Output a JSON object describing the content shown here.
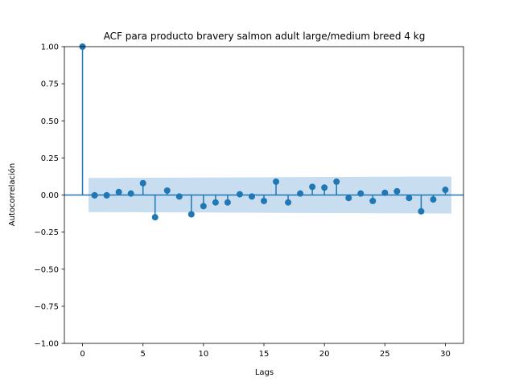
{
  "chart_data": {
    "type": "scatter",
    "title": "ACF para producto bravery salmon adult large/medium breed 4 kg",
    "xlabel": "Lags",
    "ylabel": "Autocorrelación",
    "xlim": [
      -1.5,
      31.5
    ],
    "ylim": [
      -1.0,
      1.0
    ],
    "xticks": [
      0,
      5,
      10,
      15,
      20,
      25,
      30
    ],
    "xtick_labels": [
      "0",
      "5",
      "10",
      "15",
      "20",
      "25",
      "30"
    ],
    "yticks": [
      1.0,
      0.75,
      0.5,
      0.25,
      0.0,
      -0.25,
      -0.5,
      -0.75,
      -1.0
    ],
    "ytick_labels": [
      "1.00",
      "0.75",
      "0.50",
      "0.25",
      "0.00",
      "−0.25",
      "−0.50",
      "−0.75",
      "−1.00"
    ],
    "grid": false,
    "lags": [
      0,
      1,
      2,
      3,
      4,
      5,
      6,
      7,
      8,
      9,
      10,
      11,
      12,
      13,
      14,
      15,
      16,
      17,
      18,
      19,
      20,
      21,
      22,
      23,
      24,
      25,
      26,
      27,
      28,
      29,
      30
    ],
    "acf": [
      1.0,
      -0.002,
      -0.002,
      0.02,
      0.01,
      0.08,
      -0.15,
      0.03,
      -0.01,
      -0.13,
      -0.075,
      -0.05,
      -0.05,
      0.005,
      -0.01,
      -0.04,
      0.09,
      -0.05,
      0.01,
      0.055,
      0.05,
      0.09,
      -0.02,
      0.01,
      -0.04,
      0.015,
      0.025,
      -0.02,
      -0.11,
      -0.03,
      0.035
    ],
    "confidence_band": {
      "x_start": 0.5,
      "x_end": 30.5,
      "upper_start": 0.115,
      "upper_end": 0.125,
      "color": "#c6dbef"
    },
    "colors": {
      "stem": "#1f77b4",
      "marker": "#1f77b4",
      "zero_line": "#1f77b4"
    }
  }
}
